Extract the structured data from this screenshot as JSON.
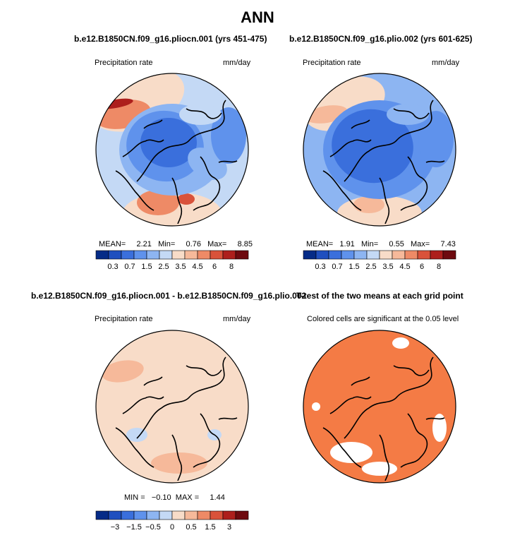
{
  "figure": {
    "title": "ANN",
    "colors": {
      "precip_scale": [
        "#052b87",
        "#1f4fbf",
        "#3a6fdc",
        "#5f92ec",
        "#8db5f2",
        "#c4d9f5",
        "#f8dcc8",
        "#f6b99a",
        "#ee8a66",
        "#d9523a",
        "#ad1f1c",
        "#6e0a0f"
      ],
      "diff_scale": [
        "#052b87",
        "#1f4fbf",
        "#3a6fdc",
        "#5f92ec",
        "#8db5f2",
        "#c4d9f5",
        "#f8dcc8",
        "#f6b99a",
        "#ee8a66",
        "#d9523a",
        "#ad1f1c",
        "#6e0a0f"
      ],
      "significance": "#f47b45",
      "coast": "#000000"
    }
  },
  "panels": [
    {
      "id": "p1",
      "title": "b.e12.B1850CN.f09_g16.pliocn.001 (yrs 451-475)",
      "left_label": "Precipitation rate",
      "right_label": "mm/day",
      "stats": {
        "mean_label": "MEAN=",
        "mean": "2.21",
        "min_label": "Min=",
        "min": "0.76",
        "max_label": "Max=",
        "max": "8.85"
      }
    },
    {
      "id": "p2",
      "title": "b.e12.B1850CN.f09_g16.plio.002 (yrs 601-625)",
      "left_label": "Precipitation rate",
      "right_label": "mm/day",
      "stats": {
        "mean_label": "MEAN=",
        "mean": "1.91",
        "min_label": "Min=",
        "min": "0.55",
        "max_label": "Max=",
        "max": "7.43"
      }
    },
    {
      "id": "p3",
      "title": "b.e12.B1850CN.f09_g16.pliocn.001 - b.e12.B1850CN.f09_g16.plio.002",
      "left_label": "Precipitation rate",
      "right_label": "mm/day",
      "stats": {
        "min_label": "MIN =",
        "min": "−0.10",
        "max_label": "MAX =",
        "max": "1.44"
      }
    },
    {
      "id": "p4",
      "title": "T-test of the two means at each grid point",
      "left_label": "Colored cells are significant at the 0.05 level"
    }
  ],
  "chart_data": [
    {
      "type": "heatmap",
      "title": "b.e12.B1850CN.f09_g16.pliocn.001 (yrs 451-475)",
      "variable": "Precipitation rate",
      "units": "mm/day",
      "projection": "north polar stereographic",
      "mean": 2.21,
      "min": 0.76,
      "max": 8.85,
      "levels": [
        "0.3",
        "0.7",
        "1.5",
        "2.5",
        "3.5",
        "4.5",
        "6",
        "8"
      ]
    },
    {
      "type": "heatmap",
      "title": "b.e12.B1850CN.f09_g16.plio.002 (yrs 601-625)",
      "variable": "Precipitation rate",
      "units": "mm/day",
      "projection": "north polar stereographic",
      "mean": 1.91,
      "min": 0.55,
      "max": 7.43,
      "levels": [
        "0.3",
        "0.7",
        "1.5",
        "2.5",
        "3.5",
        "4.5",
        "6",
        "8"
      ]
    },
    {
      "type": "heatmap",
      "title": "b.e12.B1850CN.f09_g16.pliocn.001 - b.e12.B1850CN.f09_g16.plio.002",
      "variable": "Precipitation rate",
      "units": "mm/day",
      "projection": "north polar stereographic",
      "min": -0.1,
      "max": 1.44,
      "levels": [
        "−3",
        "−1.5",
        "−0.5",
        "0",
        "0.5",
        "1.5",
        "3"
      ]
    },
    {
      "type": "heatmap",
      "title": "T-test of the two means at each grid point",
      "note": "Colored cells are significant at the 0.05 level",
      "projection": "north polar stereographic"
    }
  ]
}
